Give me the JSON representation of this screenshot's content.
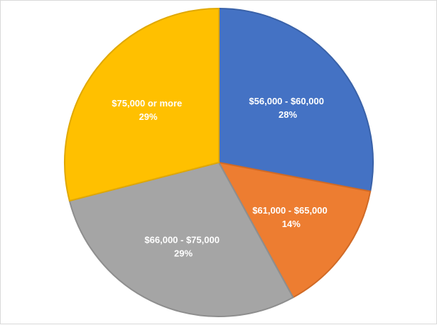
{
  "chart_data": {
    "type": "pie",
    "title": "",
    "categories": [
      "$56,000 - $60,000",
      "$61,000 - $65,000",
      "$66,000 - $75,000",
      "$75,000 or more"
    ],
    "values": [
      28,
      14,
      29,
      29
    ],
    "labels": [
      {
        "name": "$56,000 - $60,000",
        "pct": "28%"
      },
      {
        "name": "$61,000 - $65,000",
        "pct": "14%"
      },
      {
        "name": "$66,000 - $75,000",
        "pct": "29%"
      },
      {
        "name": "$75,000 or more",
        "pct": "29%"
      }
    ],
    "colors": [
      "#4472c4",
      "#ed7d31",
      "#a5a5a5",
      "#ffc000"
    ],
    "edge_colors": [
      "#3a62a8",
      "#d06a26",
      "#8e8e8e",
      "#e0a800"
    ],
    "start_angle_deg": 0,
    "direction": "clockwise",
    "legend": "none",
    "data_labels": "inside"
  }
}
